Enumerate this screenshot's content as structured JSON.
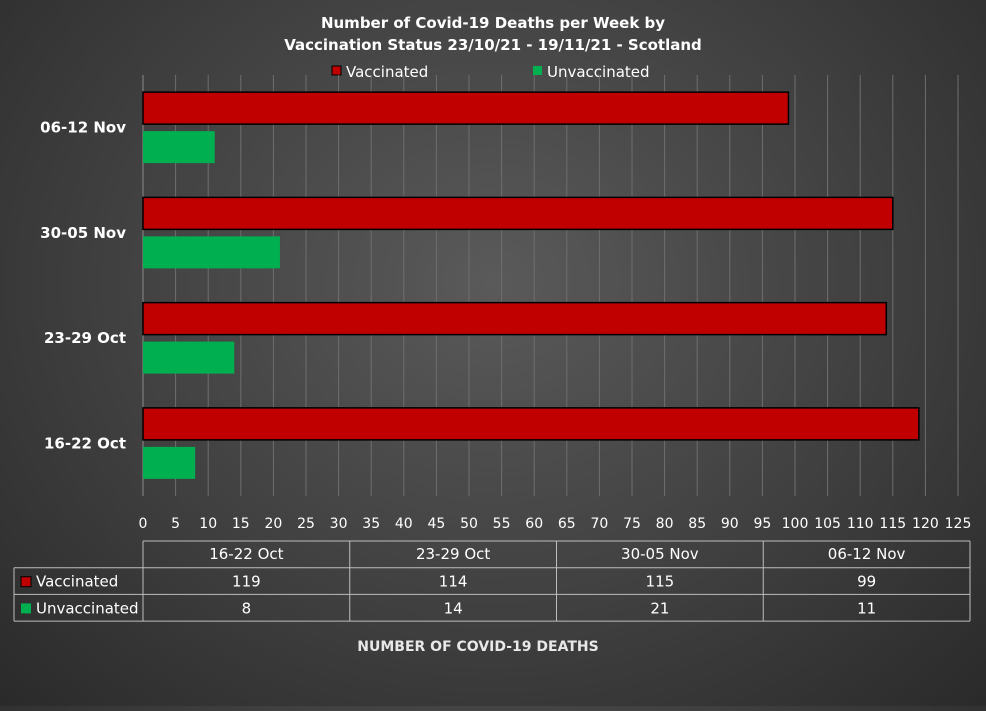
{
  "chart_data": {
    "type": "bar",
    "orientation": "horizontal",
    "title_lines": [
      "Number of Covid-19 Deaths per Week by",
      "Vaccination Status 23/10/21 - 19/11/21 - Scotland"
    ],
    "xlabel": "NUMBER OF COVID-19 DEATHS",
    "ylabel": "",
    "categories": [
      "16-22 Oct",
      "23-29 Oct",
      "30-05 Nov",
      "06-12 Nov"
    ],
    "xlim": [
      0,
      125
    ],
    "xticks": [
      0,
      5,
      10,
      15,
      20,
      25,
      30,
      35,
      40,
      45,
      50,
      55,
      60,
      65,
      70,
      75,
      80,
      85,
      90,
      95,
      100,
      105,
      110,
      115,
      120,
      125
    ],
    "grid": true,
    "legend_position": "top",
    "series": [
      {
        "name": "Vaccinated",
        "values": [
          119,
          114,
          115,
          99
        ],
        "color": "#c00000"
      },
      {
        "name": "Unvaccinated",
        "values": [
          8,
          14,
          21,
          11
        ],
        "color": "#00b050"
      }
    ],
    "data_table": true
  }
}
